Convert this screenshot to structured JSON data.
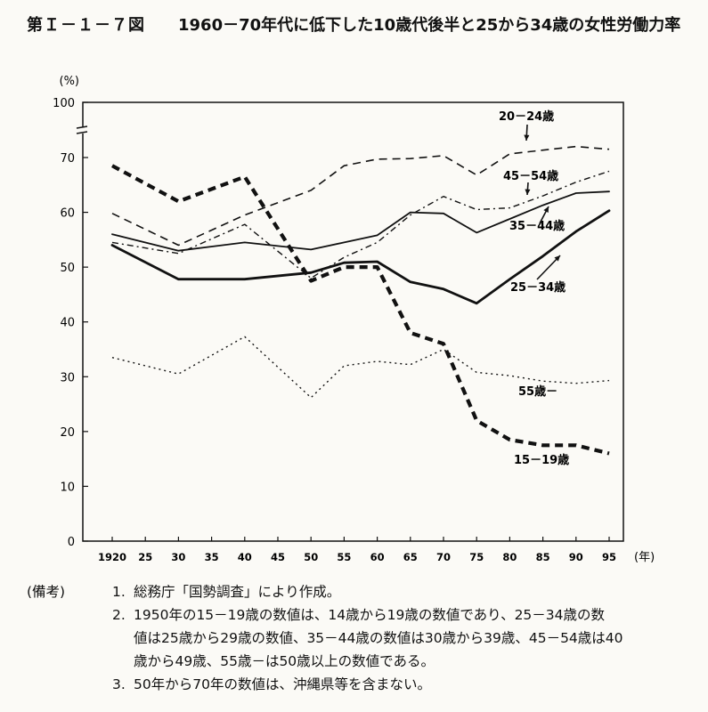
{
  "figure": {
    "label": "第Ｉ－１－７図",
    "title": "1960－70年代に低下した10歳代後半と25から34歳の女性労働力率"
  },
  "chart_data": {
    "type": "line",
    "y_unit": "(%)",
    "x_unit": "(年)",
    "x": [
      "1920",
      "25",
      "30",
      "35",
      "40",
      "45",
      "50",
      "55",
      "60",
      "65",
      "70",
      "75",
      "80",
      "85",
      "90",
      "95"
    ],
    "x_values": [
      1920,
      1925,
      1930,
      1935,
      1940,
      1945,
      1950,
      1955,
      1960,
      1965,
      1970,
      1975,
      1980,
      1985,
      1990,
      1995
    ],
    "y_ticks": [
      0,
      10,
      20,
      30,
      40,
      50,
      60,
      70,
      100
    ],
    "axis_break": "70-100",
    "series": [
      {
        "name": "20－24歳",
        "style": "dashed",
        "points": [
          [
            1920,
            59.8
          ],
          [
            1930,
            54.0
          ],
          [
            1940,
            59.5
          ],
          [
            1950,
            64.0
          ],
          [
            1955,
            68.5
          ],
          [
            1960,
            69.7
          ],
          [
            1965,
            69.8
          ],
          [
            1970,
            71.0
          ],
          [
            1975,
            66.8
          ],
          [
            1980,
            72.0
          ],
          [
            1985,
            74.0
          ],
          [
            1990,
            76.0
          ],
          [
            1995,
            74.5
          ]
        ]
      },
      {
        "name": "45－54歳",
        "style": "dashdot",
        "points": [
          [
            1920,
            54.5
          ],
          [
            1930,
            52.5
          ],
          [
            1940,
            57.8
          ],
          [
            1950,
            48.0
          ],
          [
            1955,
            51.8
          ],
          [
            1960,
            54.5
          ],
          [
            1965,
            59.5
          ],
          [
            1970,
            62.9
          ],
          [
            1975,
            60.5
          ],
          [
            1980,
            60.8
          ],
          [
            1985,
            63.0
          ],
          [
            1990,
            65.5
          ],
          [
            1995,
            67.5
          ]
        ]
      },
      {
        "name": "35－44歳",
        "style": "solid",
        "points": [
          [
            1920,
            56.0
          ],
          [
            1930,
            53.0
          ],
          [
            1940,
            54.5
          ],
          [
            1950,
            53.2
          ],
          [
            1955,
            54.5
          ],
          [
            1960,
            55.8
          ],
          [
            1965,
            60.0
          ],
          [
            1970,
            59.8
          ],
          [
            1975,
            56.3
          ],
          [
            1980,
            58.8
          ],
          [
            1985,
            61.3
          ],
          [
            1990,
            63.5
          ],
          [
            1995,
            63.8
          ]
        ]
      },
      {
        "name": "25－34歳",
        "style": "thick",
        "points": [
          [
            1920,
            54.0
          ],
          [
            1930,
            47.8
          ],
          [
            1940,
            47.8
          ],
          [
            1950,
            49.0
          ],
          [
            1955,
            50.8
          ],
          [
            1960,
            51.0
          ],
          [
            1965,
            47.3
          ],
          [
            1970,
            46.0
          ],
          [
            1975,
            43.4
          ],
          [
            1980,
            47.8
          ],
          [
            1985,
            52.0
          ],
          [
            1990,
            56.5
          ],
          [
            1995,
            60.3
          ]
        ]
      },
      {
        "name": "55歳－",
        "style": "dotted",
        "points": [
          [
            1920,
            33.5
          ],
          [
            1930,
            30.5
          ],
          [
            1940,
            37.3
          ],
          [
            1950,
            26.2
          ],
          [
            1955,
            32.0
          ],
          [
            1960,
            32.8
          ],
          [
            1965,
            32.2
          ],
          [
            1970,
            35.0
          ],
          [
            1975,
            30.8
          ],
          [
            1980,
            30.2
          ],
          [
            1985,
            29.2
          ],
          [
            1990,
            28.8
          ],
          [
            1995,
            29.3
          ]
        ]
      },
      {
        "name": "15－19歳",
        "style": "boldDashed",
        "points": [
          [
            1920,
            68.5
          ],
          [
            1930,
            62.0
          ],
          [
            1940,
            66.5
          ],
          [
            1950,
            47.5
          ],
          [
            1955,
            50.0
          ],
          [
            1960,
            50.0
          ],
          [
            1965,
            38.0
          ],
          [
            1970,
            36.0
          ],
          [
            1975,
            22.0
          ],
          [
            1980,
            18.5
          ],
          [
            1985,
            17.5
          ],
          [
            1990,
            17.5
          ],
          [
            1995,
            16.0
          ]
        ]
      }
    ]
  },
  "notes": {
    "heading": "(備考)",
    "items": [
      {
        "num": "1.",
        "lines": [
          "総務庁「国勢調査」により作成。"
        ]
      },
      {
        "num": "2.",
        "lines": [
          "1950年の15－19歳の数値は、14歳から19歳の数値であり、25－34歳の数",
          "値は25歳から29歳の数値、35－44歳の数値は30歳から39歳、45－54歳は40",
          "歳から49歳、55歳－は50歳以上の数値である。"
        ]
      },
      {
        "num": "3.",
        "lines": [
          "50年から70年の数値は、沖縄県等を含まない。"
        ]
      }
    ]
  }
}
